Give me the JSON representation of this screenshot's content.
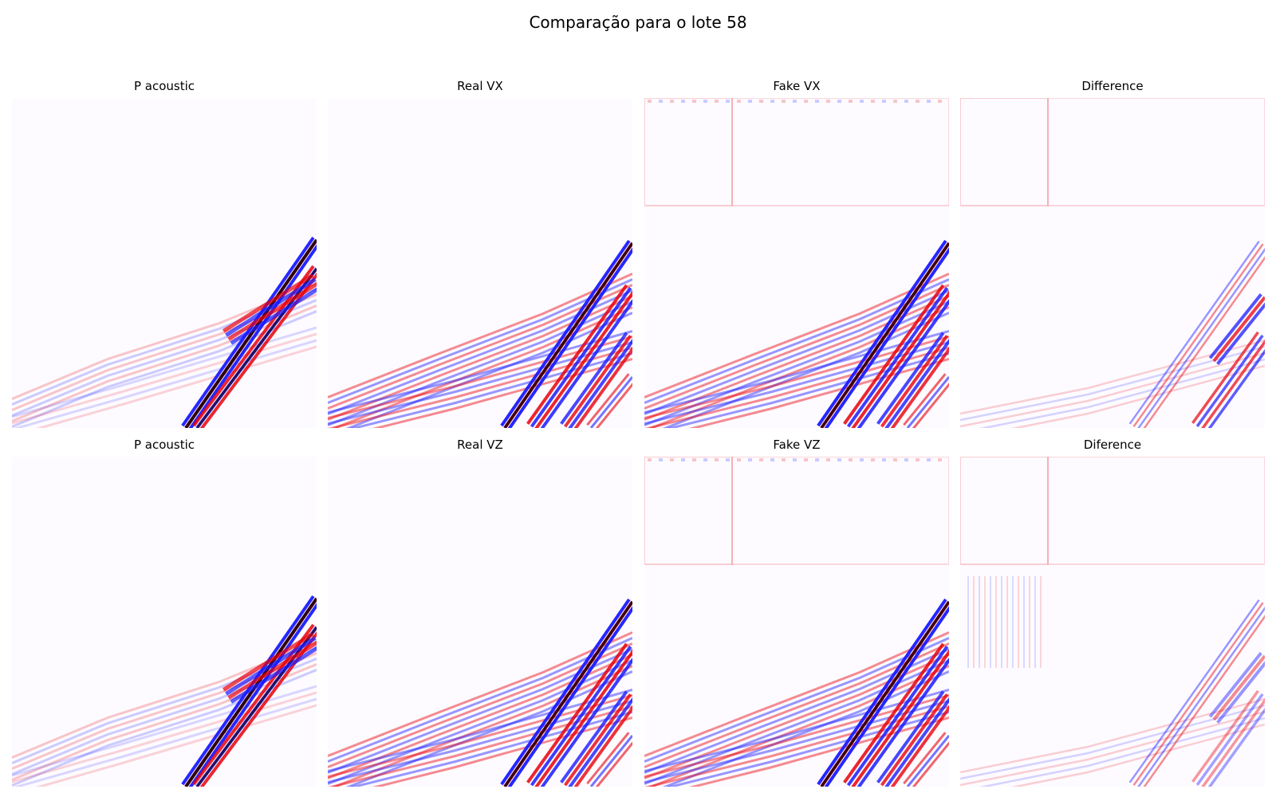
{
  "figure": {
    "suptitle": "Comparação para o lote 58"
  },
  "chart_data": {
    "type": "heatmap",
    "colormap": "seismic",
    "colors": {
      "positive": "#e8000b",
      "negative": "#1a1aff",
      "zero": "#ffffff",
      "extreme": "#1a0010"
    },
    "rows": 2,
    "cols": 4,
    "panels": [
      {
        "title": "P acoustic",
        "kind": "p",
        "row": 0,
        "col": 0
      },
      {
        "title": "Real VX",
        "kind": "real",
        "row": 0,
        "col": 1
      },
      {
        "title": "Fake VX",
        "kind": "fake",
        "row": 0,
        "col": 2
      },
      {
        "title": "Difference",
        "kind": "diff",
        "row": 0,
        "col": 3
      },
      {
        "title": "P acoustic",
        "kind": "p",
        "row": 1,
        "col": 0
      },
      {
        "title": "Real VZ",
        "kind": "real",
        "row": 1,
        "col": 1
      },
      {
        "title": "Fake VZ",
        "kind": "fake",
        "row": 1,
        "col": 2
      },
      {
        "title": "Diference",
        "kind": "diff",
        "row": 1,
        "col": 3
      }
    ]
  }
}
